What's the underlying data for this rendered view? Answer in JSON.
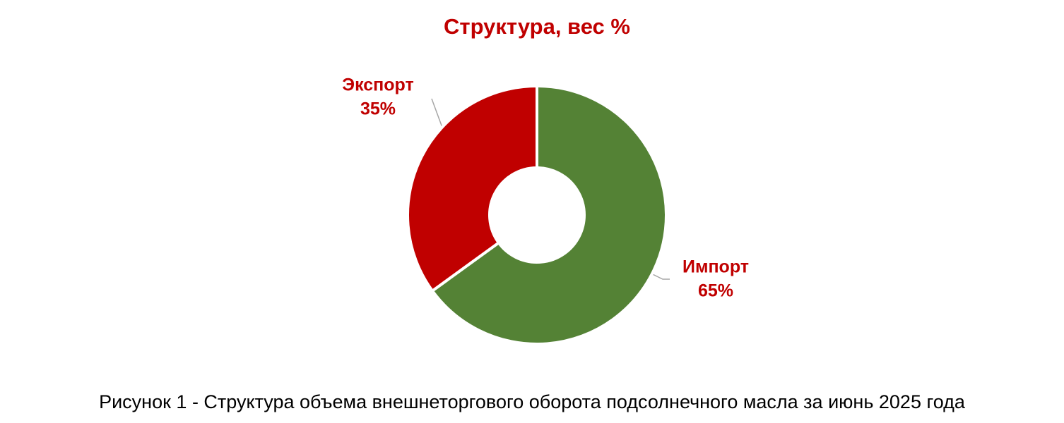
{
  "chart_data": {
    "type": "donut",
    "title": "Структура, вес %",
    "categories": [
      "Импорт",
      "Экспорт"
    ],
    "values": [
      65,
      35
    ],
    "value_labels": [
      "65%",
      "35%"
    ],
    "colors": [
      "#548235",
      "#c00000"
    ],
    "label_color": "#c00000"
  },
  "caption": "Рисунок 1 - Структура объема внешнеторгового оборота подсолнечного масла за июнь 2025 года"
}
